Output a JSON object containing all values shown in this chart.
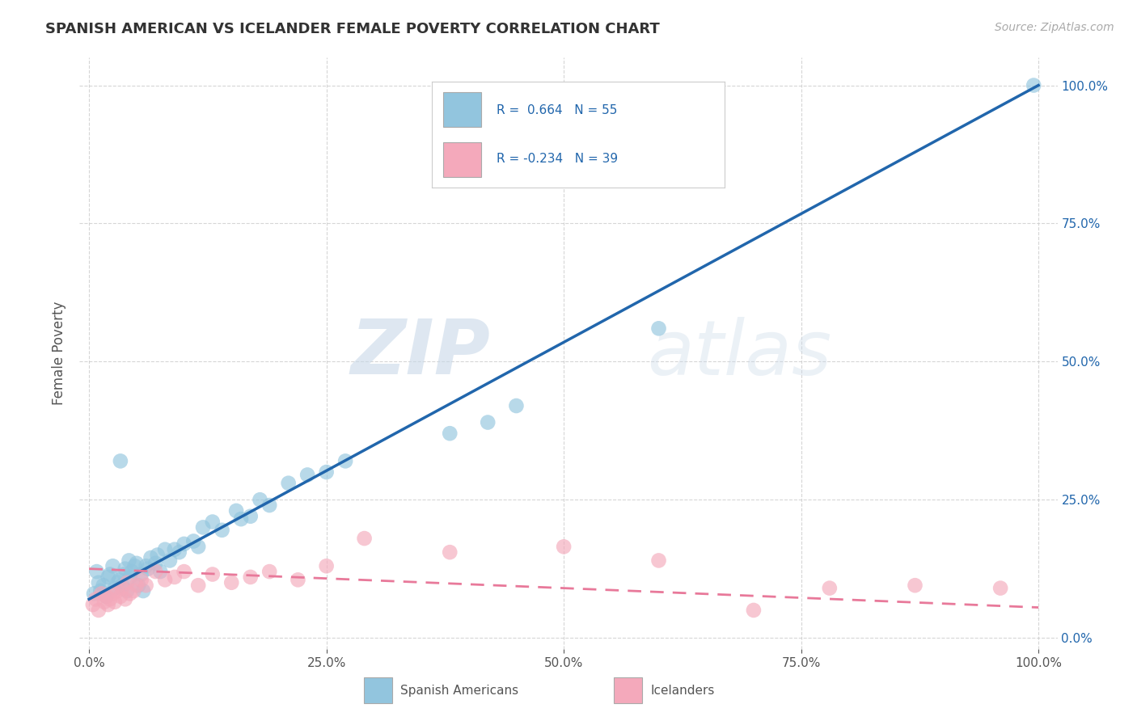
{
  "title": "SPANISH AMERICAN VS ICELANDER FEMALE POVERTY CORRELATION CHART",
  "source": "Source: ZipAtlas.com",
  "ylabel": "Female Poverty",
  "watermark_zip": "ZIP",
  "watermark_atlas": "atlas",
  "blue_label": "Spanish Americans",
  "pink_label": "Icelanders",
  "blue_R": 0.664,
  "blue_N": 55,
  "pink_R": -0.234,
  "pink_N": 39,
  "xlim": [
    -0.01,
    1.02
  ],
  "ylim": [
    -0.02,
    1.05
  ],
  "blue_color": "#92c5de",
  "pink_color": "#f4a9bb",
  "blue_line_color": "#2166ac",
  "pink_line_color": "#e8799a",
  "background_color": "#ffffff",
  "grid_color": "#cccccc",
  "blue_scatter_x": [
    0.005,
    0.008,
    0.01,
    0.012,
    0.015,
    0.018,
    0.02,
    0.022,
    0.025,
    0.027,
    0.03,
    0.032,
    0.033,
    0.035,
    0.037,
    0.038,
    0.04,
    0.042,
    0.043,
    0.045,
    0.048,
    0.05,
    0.052,
    0.055,
    0.057,
    0.06,
    0.062,
    0.065,
    0.07,
    0.072,
    0.075,
    0.08,
    0.085,
    0.09,
    0.095,
    0.1,
    0.11,
    0.115,
    0.12,
    0.13,
    0.14,
    0.155,
    0.16,
    0.17,
    0.18,
    0.19,
    0.21,
    0.23,
    0.25,
    0.27,
    0.38,
    0.42,
    0.45,
    0.6,
    0.995
  ],
  "blue_scatter_y": [
    0.08,
    0.12,
    0.1,
    0.085,
    0.095,
    0.075,
    0.11,
    0.115,
    0.13,
    0.09,
    0.1,
    0.105,
    0.32,
    0.095,
    0.115,
    0.125,
    0.085,
    0.14,
    0.11,
    0.12,
    0.13,
    0.135,
    0.095,
    0.115,
    0.085,
    0.13,
    0.125,
    0.145,
    0.135,
    0.15,
    0.12,
    0.16,
    0.14,
    0.16,
    0.155,
    0.17,
    0.175,
    0.165,
    0.2,
    0.21,
    0.195,
    0.23,
    0.215,
    0.22,
    0.25,
    0.24,
    0.28,
    0.295,
    0.3,
    0.32,
    0.37,
    0.39,
    0.42,
    0.56,
    1.0
  ],
  "pink_scatter_x": [
    0.004,
    0.007,
    0.01,
    0.013,
    0.016,
    0.018,
    0.02,
    0.022,
    0.025,
    0.027,
    0.03,
    0.033,
    0.035,
    0.038,
    0.04,
    0.043,
    0.047,
    0.05,
    0.055,
    0.06,
    0.07,
    0.08,
    0.09,
    0.1,
    0.115,
    0.13,
    0.15,
    0.17,
    0.19,
    0.22,
    0.25,
    0.29,
    0.38,
    0.5,
    0.6,
    0.7,
    0.78,
    0.87,
    0.96
  ],
  "pink_scatter_y": [
    0.06,
    0.07,
    0.05,
    0.08,
    0.065,
    0.075,
    0.06,
    0.07,
    0.08,
    0.065,
    0.085,
    0.075,
    0.09,
    0.07,
    0.1,
    0.08,
    0.085,
    0.095,
    0.105,
    0.095,
    0.12,
    0.105,
    0.11,
    0.12,
    0.095,
    0.115,
    0.1,
    0.11,
    0.12,
    0.105,
    0.13,
    0.18,
    0.155,
    0.165,
    0.14,
    0.05,
    0.09,
    0.095,
    0.09
  ],
  "blue_line_x0": 0.0,
  "blue_line_y0": 0.07,
  "blue_line_x1": 1.0,
  "blue_line_y1": 1.0,
  "pink_line_x0": 0.0,
  "pink_line_y0": 0.125,
  "pink_line_x1": 1.0,
  "pink_line_y1": 0.055
}
